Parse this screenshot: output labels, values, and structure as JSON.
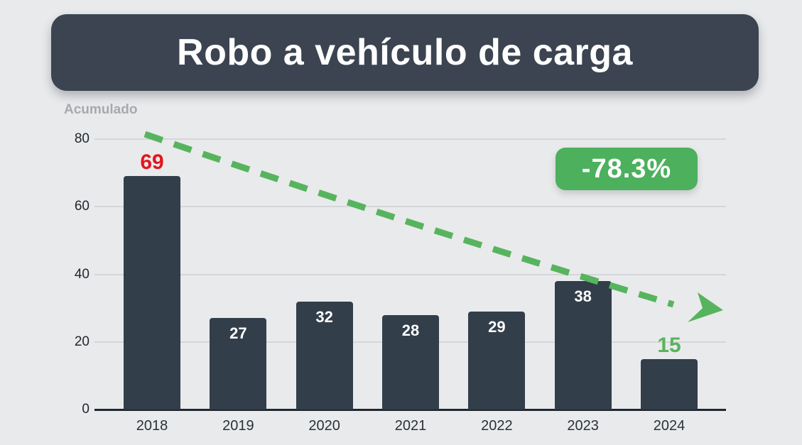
{
  "header": {
    "title": "Robo a vehículo de carga"
  },
  "chart_data": {
    "type": "bar",
    "title": "Robo a vehículo de carga",
    "subtitle": "Acumulado",
    "categories": [
      "2018",
      "2019",
      "2020",
      "2021",
      "2022",
      "2023",
      "2024"
    ],
    "values": [
      69,
      27,
      32,
      28,
      29,
      38,
      15
    ],
    "value_labels": [
      {
        "text": "69",
        "placement": "above",
        "color": "#e4151d"
      },
      {
        "text": "27",
        "placement": "inside",
        "color": "#ffffff"
      },
      {
        "text": "32",
        "placement": "inside",
        "color": "#ffffff"
      },
      {
        "text": "28",
        "placement": "inside",
        "color": "#ffffff"
      },
      {
        "text": "29",
        "placement": "inside",
        "color": "#ffffff"
      },
      {
        "text": "38",
        "placement": "inside",
        "color": "#ffffff"
      },
      {
        "text": "15",
        "placement": "above",
        "color": "#57b45e"
      }
    ],
    "xlabel": "",
    "ylabel": "",
    "ylim": [
      0,
      80
    ],
    "yticks": [
      0,
      20,
      40,
      60,
      80
    ],
    "grid": true,
    "legend": "none",
    "bar_color": "#323e4a",
    "trend_arrow": {
      "direction": "down",
      "style": "dashed",
      "color": "#57b45e"
    },
    "badge": {
      "text": "-78.3%",
      "bg_color": "#4cb05d",
      "text_color": "#ffffff"
    }
  },
  "colors": {
    "background": "#e9eaec",
    "banner_bg": "#3b4450",
    "banner_text": "#ffffff",
    "subtitle_text": "#a6a9ad",
    "gridline": "#d4d6d9",
    "axis_line": "#1f2730",
    "highlight_red": "#e4151d",
    "highlight_green": "#57b45e"
  }
}
